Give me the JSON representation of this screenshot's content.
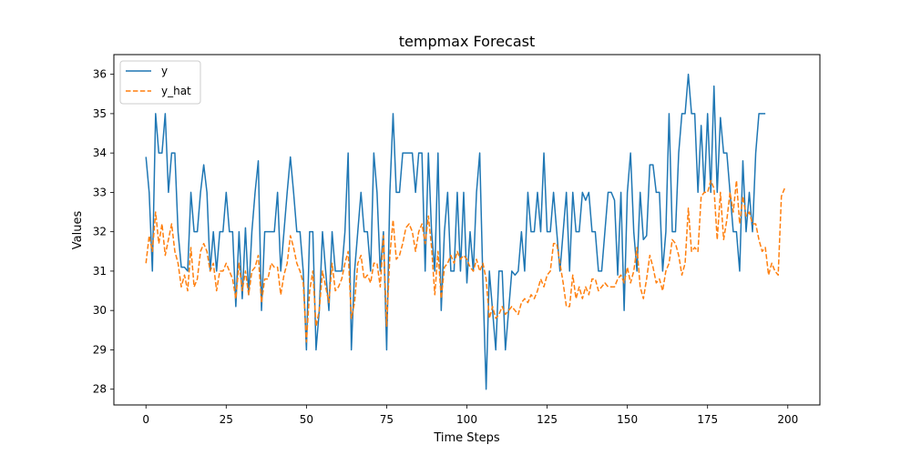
{
  "chart_data": {
    "type": "line",
    "title": "tempmax Forecast",
    "xlabel": "Time Steps",
    "ylabel": "Values",
    "xlim": [
      -10,
      210
    ],
    "ylim": [
      27.6,
      36.5
    ],
    "xticks": [
      0,
      25,
      50,
      75,
      100,
      125,
      150,
      175,
      200
    ],
    "yticks": [
      28,
      29,
      30,
      31,
      32,
      33,
      34,
      35,
      36
    ],
    "grid": false,
    "legend_position": "upper-left",
    "series": [
      {
        "name": "y",
        "color": "#1f77b4",
        "style": "solid",
        "values": [
          33.9,
          33,
          31,
          35,
          34,
          34,
          35,
          33,
          34,
          34,
          32,
          31.1,
          31.1,
          31,
          33,
          32,
          32,
          33,
          33.7,
          33,
          31,
          32,
          31,
          32,
          32,
          33,
          32,
          32,
          30.1,
          32,
          30.3,
          32.1,
          30.4,
          32,
          33,
          33.8,
          30,
          32,
          32,
          32,
          32,
          33,
          31,
          32,
          33,
          33.9,
          33,
          32,
          32,
          31,
          29,
          32,
          32,
          29,
          30,
          32,
          31,
          30,
          32,
          31,
          31,
          31,
          32,
          34,
          29,
          31,
          32,
          33,
          32,
          32,
          31,
          34,
          33,
          31,
          32,
          29,
          33,
          35,
          33,
          33,
          34,
          34,
          34,
          34,
          33,
          34,
          34,
          31,
          34,
          32,
          31,
          34,
          30,
          32,
          33,
          31,
          31,
          33,
          31,
          33,
          30.7,
          32,
          31,
          33,
          34,
          30.7,
          28,
          31,
          30,
          29,
          31,
          31,
          29,
          30,
          31,
          30.9,
          31,
          32,
          31,
          33,
          32,
          32,
          33,
          32,
          34,
          32,
          32,
          33,
          32,
          31,
          32,
          33,
          31,
          33,
          32,
          32,
          33,
          32.8,
          33,
          32,
          32,
          31,
          31,
          32,
          33,
          33,
          32.8,
          30.9,
          33,
          30,
          33,
          34,
          32,
          31,
          33,
          31.8,
          31.9,
          33.7,
          33.7,
          33,
          33,
          31,
          32,
          35,
          32,
          32,
          34,
          35,
          35,
          36,
          35,
          35,
          33,
          34.7,
          33,
          35,
          33,
          35.7,
          33,
          34.9,
          34,
          34,
          33,
          32,
          32,
          31,
          33.8,
          32,
          33,
          32,
          34,
          35,
          35,
          35
        ]
      },
      {
        "name": "y_hat",
        "color": "#ff7f0e",
        "style": "dashed",
        "values": [
          31.2,
          31.9,
          31.5,
          32.5,
          31.7,
          32.2,
          31.4,
          31.8,
          32.2,
          31.5,
          31.2,
          30.6,
          30.9,
          30.5,
          31.6,
          30.6,
          30.8,
          31.5,
          31.7,
          31.5,
          31,
          31.2,
          30.5,
          31,
          31,
          31.2,
          31,
          30.8,
          30.3,
          31.2,
          30.5,
          31,
          30.4,
          31,
          31.1,
          31.4,
          30.2,
          30.8,
          30.8,
          31.2,
          31.1,
          31.1,
          30.4,
          30.9,
          31.2,
          31.9,
          31.6,
          31.2,
          31,
          30.7,
          29.2,
          30.5,
          31,
          29.6,
          30,
          31,
          30.6,
          30.2,
          31.2,
          30.5,
          30.6,
          30.8,
          31.2,
          31.5,
          29.8,
          30.2,
          31.2,
          31.4,
          30.8,
          30.9,
          30.7,
          31.2,
          31.2,
          30.6,
          31.9,
          29.6,
          31.4,
          32.3,
          31.3,
          31.4,
          31.7,
          32.1,
          32.2,
          32,
          31.5,
          32,
          32.2,
          31.7,
          32.4,
          31.6,
          30.4,
          31.5,
          30.3,
          31.1,
          31.2,
          31.4,
          31.2,
          31.5,
          31.3,
          31.4,
          31.3,
          31.1,
          31,
          31.3,
          31,
          31.2,
          30.8,
          29.8,
          30.1,
          29.8,
          29.9,
          30.1,
          29.9,
          30,
          30.1,
          30,
          29.9,
          30.2,
          30.3,
          30.2,
          30.4,
          30.3,
          30.5,
          30.8,
          30.6,
          30.9,
          31,
          31.7,
          31.7,
          31.2,
          30.7,
          30.1,
          30.1,
          30.9,
          30.3,
          30.6,
          30.3,
          30.6,
          30.4,
          30.8,
          30.8,
          30.5,
          30.6,
          30.7,
          30.6,
          30.6,
          30.6,
          30.8,
          30.9,
          30.7,
          31.1,
          30.7,
          31,
          31.6,
          30.6,
          30.3,
          30.8,
          31.4,
          31.1,
          30.7,
          30.8,
          30.5,
          31,
          31.2,
          31.8,
          31.7,
          31.4,
          30.9,
          31.2,
          32.6,
          31.5,
          31.6,
          31.5,
          32.9,
          33,
          33,
          33.3,
          33.1,
          31.8,
          33,
          31.8,
          32.3,
          33,
          32.5,
          33.3,
          32.2,
          32.9,
          32.4,
          32.5,
          32.2,
          32.2,
          31.8,
          31.5,
          31.6,
          30.9,
          31.2,
          31,
          30.9,
          32.9,
          33.1
        ]
      }
    ]
  }
}
